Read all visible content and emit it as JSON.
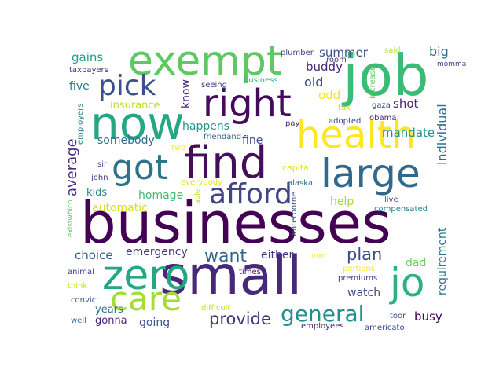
{
  "word_cloud": {
    "words": [
      {
        "text": "businesses",
        "color": "#440154"
      },
      {
        "text": "small",
        "color": "#482979"
      },
      {
        "text": "now",
        "color": "#26a784"
      },
      {
        "text": "job",
        "color": "#3bbb75"
      },
      {
        "text": "exempt",
        "color": "#5ec962"
      },
      {
        "text": "find",
        "color": "#440e58"
      },
      {
        "text": "right",
        "color": "#460a5d"
      },
      {
        "text": "health",
        "color": "#fde725"
      },
      {
        "text": "large",
        "color": "#31688e"
      },
      {
        "text": "got",
        "color": "#2c738e"
      },
      {
        "text": "zero",
        "color": "#22a884"
      },
      {
        "text": "care",
        "color": "#a5db36"
      },
      {
        "text": "jo",
        "color": "#2db27d"
      },
      {
        "text": "afford",
        "color": "#414487"
      },
      {
        "text": "pick",
        "color": "#3b518b"
      },
      {
        "text": "general",
        "color": "#218f8d"
      },
      {
        "text": "want",
        "color": "#33638d"
      },
      {
        "text": "provide",
        "color": "#46327e"
      },
      {
        "text": "plan",
        "color": "#3e4a89"
      },
      {
        "text": "average",
        "color": "#472f7d"
      },
      {
        "text": "summer",
        "color": "#3b528b"
      },
      {
        "text": "buddy",
        "color": "#482576"
      },
      {
        "text": "gains",
        "color": "#1f9e89"
      },
      {
        "text": "five",
        "color": "#2a788e"
      },
      {
        "text": "know",
        "color": "#482878"
      },
      {
        "text": "old",
        "color": "#3f4788"
      },
      {
        "text": "odd",
        "color": "#f1e51d"
      },
      {
        "text": "shot",
        "color": "#482173"
      },
      {
        "text": "big",
        "color": "#31688e"
      },
      {
        "text": "individual",
        "color": "#2d708e"
      },
      {
        "text": "mandate",
        "color": "#21918c"
      },
      {
        "text": "happens",
        "color": "#1f988b"
      },
      {
        "text": "fine",
        "color": "#3e4989"
      },
      {
        "text": "somebody",
        "color": "#2e6e8e"
      },
      {
        "text": "insurance",
        "color": "#c2df23"
      },
      {
        "text": "homage",
        "color": "#3dbc74"
      },
      {
        "text": "automatic",
        "color": "#d8e219"
      },
      {
        "text": "emergency",
        "color": "#453882"
      },
      {
        "text": "choice",
        "color": "#34608d"
      },
      {
        "text": "either",
        "color": "#453781"
      },
      {
        "text": "help",
        "color": "#a2da37"
      },
      {
        "text": "dad",
        "color": "#6ccd5a"
      },
      {
        "text": "requirement",
        "color": "#2a788e"
      },
      {
        "text": "watch",
        "color": "#3e4989"
      },
      {
        "text": "busy",
        "color": "#440154"
      },
      {
        "text": "going",
        "color": "#3b528b"
      },
      {
        "text": "gonna",
        "color": "#482475"
      },
      {
        "text": "years",
        "color": "#2d708e"
      },
      {
        "text": "kids",
        "color": "#25848e"
      },
      {
        "text": "capital",
        "color": "#e5e419"
      },
      {
        "text": "compensated",
        "color": "#26818e"
      },
      {
        "text": "live",
        "color": "#3b528b"
      },
      {
        "text": "taxpayers",
        "color": "#46327e"
      },
      {
        "text": "plumber",
        "color": "#404688"
      },
      {
        "text": "room",
        "color": "#433e85"
      },
      {
        "text": "said",
        "color": "#b5de2b"
      },
      {
        "text": "tax",
        "color": "#d2e21b"
      },
      {
        "text": "increase",
        "color": "#5ec962"
      },
      {
        "text": "gaza",
        "color": "#3f4788"
      },
      {
        "text": "obama",
        "color": "#472d7b"
      },
      {
        "text": "adopted",
        "color": "#414487"
      },
      {
        "text": "momma",
        "color": "#433e85"
      },
      {
        "text": "employers",
        "color": "#287d8e"
      },
      {
        "text": "seeing",
        "color": "#443a83"
      },
      {
        "text": "business",
        "color": "#29af7f"
      },
      {
        "text": "pay",
        "color": "#472c7a"
      },
      {
        "text": "friendand",
        "color": "#355f8d"
      },
      {
        "text": "two",
        "color": "#fde725"
      },
      {
        "text": "sir",
        "color": "#3b528b"
      },
      {
        "text": "john",
        "color": "#46337e"
      },
      {
        "text": "everybody",
        "color": "#e2e418"
      },
      {
        "text": "alaska",
        "color": "#2c728e"
      },
      {
        "text": "existwhich",
        "color": "#5ec962"
      },
      {
        "text": "able",
        "color": "#bddf26"
      },
      {
        "text": "waterborne",
        "color": "#3b528b"
      },
      {
        "text": "von",
        "color": "#fde725"
      },
      {
        "text": "portions",
        "color": "#fde725"
      },
      {
        "text": "animal",
        "color": "#424186"
      },
      {
        "text": "times",
        "color": "#471063"
      },
      {
        "text": "premiums",
        "color": "#453882"
      },
      {
        "text": "think",
        "color": "#c8e020"
      },
      {
        "text": "convict",
        "color": "#3b528b"
      },
      {
        "text": "difficult",
        "color": "#bddf26"
      },
      {
        "text": "employees",
        "color": "#482878"
      },
      {
        "text": "toor",
        "color": "#3e4989"
      },
      {
        "text": "americato",
        "color": "#3e4989"
      },
      {
        "text": "well",
        "color": "#2d708e"
      }
    ]
  }
}
